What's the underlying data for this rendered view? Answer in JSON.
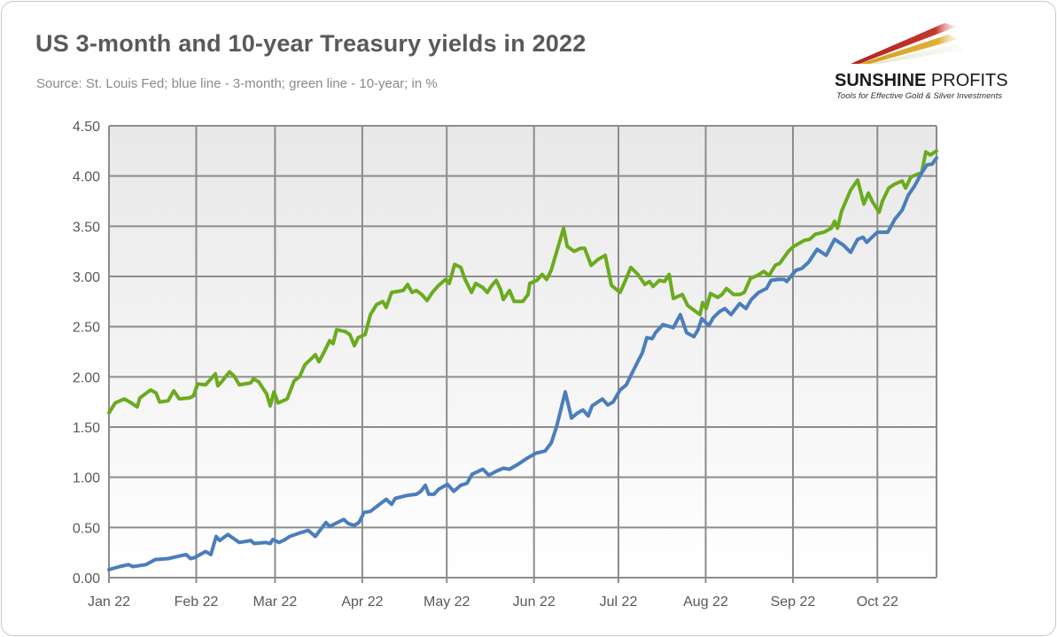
{
  "chart_data": {
    "type": "line",
    "title": "US 3-month and 10-year Treasury yields in 2022",
    "subtitle": "Source: St. Louis Fed; blue line - 3-month; green line - 10-year; in %",
    "xlabel": "",
    "ylabel": "",
    "x_unit": "days since Jan 1, 2022",
    "xlim": [
      0,
      294
    ],
    "ylim": [
      0,
      4.5
    ],
    "y_ticks": [
      "0.00",
      "0.50",
      "1.00",
      "1.50",
      "2.00",
      "2.50",
      "3.00",
      "3.50",
      "4.00",
      "4.50"
    ],
    "y_tick_values": [
      0,
      0.5,
      1,
      1.5,
      2,
      2.5,
      3,
      3.5,
      4,
      4.5
    ],
    "x_ticks": [
      "Jan 22",
      "Feb 22",
      "Mar 22",
      "Apr 22",
      "May 22",
      "Jun 22",
      "Jul 22",
      "Aug 22",
      "Sep 22",
      "Oct 22"
    ],
    "x_tick_values": [
      0,
      31,
      59,
      90,
      120,
      151,
      181,
      212,
      243,
      273
    ],
    "grid": true,
    "series": [
      {
        "name": "10-year",
        "color": "#6aab1e",
        "x": [
          0,
          2.2,
          5.4,
          7.9,
          10,
          11,
          14.8,
          16.7,
          18,
          21,
          23,
          25,
          28.6,
          30,
          31.5,
          34.3,
          35.6,
          37.8,
          38.7,
          40,
          42.8,
          44.4,
          46.3,
          50.4,
          51.3,
          53.2,
          56,
          57.3,
          58.6,
          60.1,
          63.3,
          65.8,
          67.7,
          69.6,
          71.5,
          73.3,
          74.6,
          76.5,
          78.4,
          79.6,
          80.9,
          84,
          85.6,
          87.2,
          88.5,
          91,
          92.9,
          95.1,
          97.3,
          98.5,
          100.4,
          104.5,
          106.1,
          107.7,
          109.2,
          111.1,
          113,
          114.9,
          117.1,
          119.6,
          120.9,
          122.8,
          125,
          126.5,
          128.8,
          130.3,
          132.8,
          134.4,
          136,
          137.6,
          139.1,
          140.1,
          142.3,
          143.9,
          147,
          148.9,
          149.5,
          152,
          153.9,
          155.5,
          157.1,
          159,
          161.5,
          162.8,
          165.3,
          167.5,
          169,
          171.3,
          173.8,
          176.3,
          178.5,
          181.6,
          183.8,
          185.4,
          187.9,
          190.4,
          192,
          193.3,
          195.5,
          197.4,
          199,
          200.5,
          203.7,
          205.6,
          207.5,
          210,
          210.9,
          212.2,
          213.7,
          216.3,
          217.8,
          219.4,
          221.9,
          224.1,
          225.7,
          227.9,
          230.4,
          232.6,
          234.5,
          236.7,
          238.3,
          241.4,
          243.3,
          245.2,
          247.1,
          249,
          250.9,
          254,
          256.6,
          257.8,
          258.8,
          260.3,
          263.5,
          266,
          268.2,
          269.8,
          271.3,
          273.6,
          274.8,
          277,
          279.2,
          281.8,
          283,
          284.9,
          287.4,
          288.7,
          290.2,
          291.8,
          294
        ],
        "y": [
          1.64,
          1.74,
          1.78,
          1.74,
          1.7,
          1.79,
          1.87,
          1.84,
          1.75,
          1.76,
          1.86,
          1.78,
          1.79,
          1.81,
          1.93,
          1.92,
          1.96,
          2.03,
          1.91,
          1.95,
          2.05,
          2.01,
          1.92,
          1.94,
          1.98,
          1.95,
          1.83,
          1.71,
          1.85,
          1.74,
          1.78,
          1.96,
          2.0,
          2.12,
          2.17,
          2.22,
          2.15,
          2.25,
          2.36,
          2.33,
          2.47,
          2.45,
          2.42,
          2.31,
          2.39,
          2.42,
          2.62,
          2.72,
          2.75,
          2.69,
          2.84,
          2.86,
          2.92,
          2.84,
          2.86,
          2.82,
          2.76,
          2.84,
          2.91,
          2.97,
          2.93,
          3.12,
          3.09,
          2.97,
          2.84,
          2.93,
          2.89,
          2.84,
          2.91,
          2.96,
          2.87,
          2.77,
          2.86,
          2.75,
          2.75,
          2.82,
          2.93,
          2.96,
          3.02,
          2.97,
          3.06,
          3.24,
          3.48,
          3.3,
          3.25,
          3.28,
          3.28,
          3.11,
          3.17,
          3.21,
          2.91,
          2.84,
          2.98,
          3.09,
          3.02,
          2.92,
          2.95,
          2.9,
          2.96,
          2.95,
          3.02,
          2.78,
          2.82,
          2.71,
          2.67,
          2.62,
          2.74,
          2.68,
          2.83,
          2.79,
          2.82,
          2.88,
          2.82,
          2.82,
          2.84,
          2.98,
          3.01,
          3.05,
          3.01,
          3.11,
          3.13,
          3.25,
          3.3,
          3.33,
          3.36,
          3.37,
          3.42,
          3.44,
          3.48,
          3.55,
          3.48,
          3.65,
          3.86,
          3.96,
          3.72,
          3.83,
          3.74,
          3.64,
          3.75,
          3.88,
          3.92,
          3.95,
          3.88,
          3.99,
          4.02,
          4.03,
          4.24,
          4.21,
          4.25
        ]
      },
      {
        "name": "3-month",
        "color": "#4a7ebb",
        "x": [
          0,
          3.8,
          6.9,
          8.5,
          13.2,
          16.4,
          21.1,
          24.2,
          27.4,
          29,
          30.5,
          34.3,
          36.2,
          38.1,
          39.3,
          42.2,
          46.3,
          50.4,
          51.6,
          55.7,
          57.3,
          58.2,
          60.4,
          62.6,
          64.2,
          68.3,
          70.8,
          73.3,
          77.1,
          78.4,
          83.4,
          85,
          87.2,
          88.8,
          90.7,
          92.9,
          96.6,
          98.5,
          100.4,
          101.7,
          106.1,
          109.2,
          110.8,
          112.4,
          113.6,
          115.5,
          117.1,
          120.2,
          122.5,
          125,
          127.2,
          129,
          132.8,
          135,
          137.6,
          140.1,
          142.3,
          145.4,
          148.6,
          151.7,
          154.9,
          157.1,
          159,
          162.1,
          164.3,
          166.5,
          168.4,
          170.3,
          171.6,
          175.3,
          177.2,
          179.1,
          181.6,
          183.8,
          186.4,
          189.5,
          191.1,
          193,
          194.2,
          196.8,
          198,
          200.5,
          203,
          205.2,
          207.8,
          209.3,
          210.6,
          213.1,
          214.7,
          216.9,
          218.8,
          221,
          224.1,
          226.3,
          228.2,
          230.8,
          233.6,
          235.2,
          237.7,
          239.9,
          240.8,
          244,
          246.2,
          248.5,
          251.6,
          254.8,
          257.8,
          261,
          263.5,
          266,
          267.9,
          269.2,
          271.1,
          273,
          274.8,
          276.7,
          279.2,
          281.8,
          284,
          286.2,
          288.7,
          290.6,
          292.5,
          294
        ],
        "y": [
          0.08,
          0.11,
          0.13,
          0.11,
          0.13,
          0.18,
          0.19,
          0.21,
          0.23,
          0.19,
          0.2,
          0.26,
          0.23,
          0.41,
          0.37,
          0.43,
          0.35,
          0.37,
          0.34,
          0.35,
          0.34,
          0.38,
          0.35,
          0.38,
          0.41,
          0.45,
          0.47,
          0.41,
          0.55,
          0.51,
          0.58,
          0.54,
          0.52,
          0.55,
          0.65,
          0.66,
          0.74,
          0.78,
          0.73,
          0.79,
          0.82,
          0.83,
          0.86,
          0.92,
          0.83,
          0.83,
          0.88,
          0.93,
          0.86,
          0.92,
          0.94,
          1.03,
          1.08,
          1.02,
          1.06,
          1.09,
          1.08,
          1.13,
          1.19,
          1.24,
          1.26,
          1.34,
          1.5,
          1.85,
          1.59,
          1.64,
          1.67,
          1.61,
          1.71,
          1.78,
          1.72,
          1.75,
          1.87,
          1.92,
          2.07,
          2.24,
          2.39,
          2.38,
          2.44,
          2.52,
          2.51,
          2.49,
          2.62,
          2.44,
          2.4,
          2.47,
          2.58,
          2.51,
          2.59,
          2.65,
          2.68,
          2.62,
          2.73,
          2.68,
          2.77,
          2.84,
          2.88,
          2.96,
          2.97,
          2.97,
          2.95,
          3.06,
          3.08,
          3.14,
          3.27,
          3.21,
          3.37,
          3.31,
          3.24,
          3.37,
          3.39,
          3.34,
          3.39,
          3.44,
          3.44,
          3.44,
          3.57,
          3.66,
          3.81,
          3.9,
          4.03,
          4.11,
          4.12,
          4.18
        ]
      }
    ]
  },
  "logo": {
    "name_bold": "SUNSHINE",
    "name_light": "PROFITS",
    "tagline": "Tools for Effective Gold & Silver Investments"
  }
}
